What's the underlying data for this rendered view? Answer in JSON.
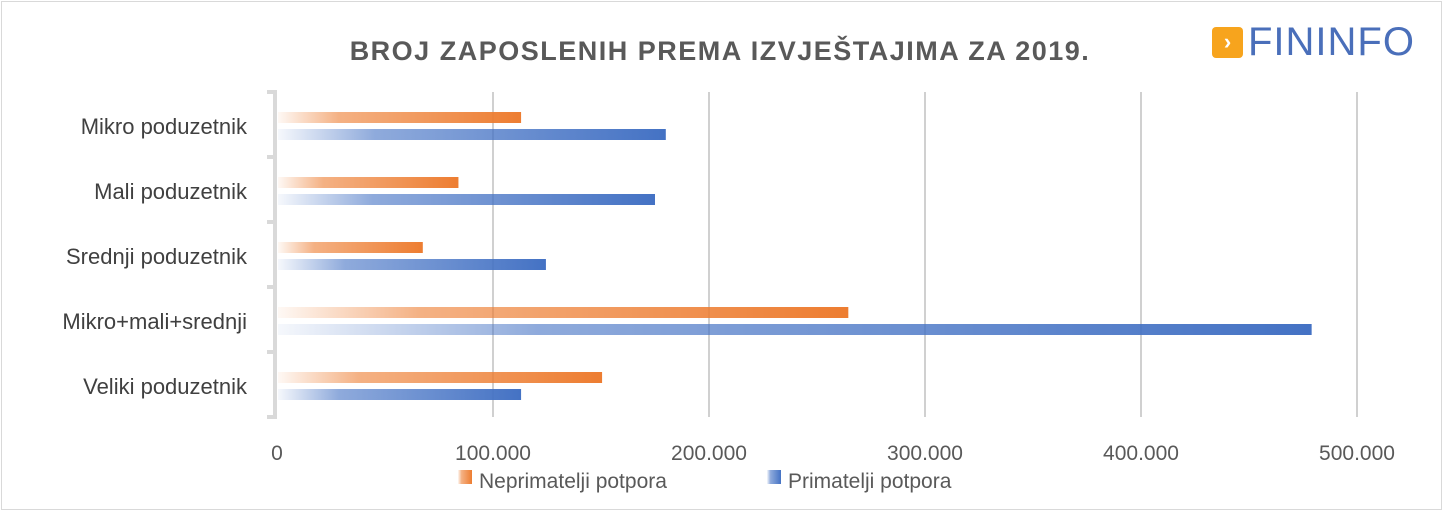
{
  "chart_data": {
    "type": "bar",
    "orientation": "horizontal",
    "title": "BROJ ZAPOSLENIH PREMA IZVJEŠTAJIMA ZA 2019.",
    "categories": [
      "Mikro poduzetnik",
      "Mali poduzetnik",
      "Srednji poduzetnik",
      "Mikro+mali+srednji",
      "Veliki poduzetnik"
    ],
    "series": [
      {
        "name": "Neprimatelji potpora",
        "color": "#ed7d31",
        "values": [
          113000,
          84000,
          67500,
          264500,
          150500
        ]
      },
      {
        "name": "Primatelji potpora",
        "color": "#4472c4",
        "values": [
          180000,
          175000,
          124500,
          479000,
          113000
        ]
      }
    ],
    "xlim": [
      0,
      500000
    ],
    "xticks": [
      0,
      100000,
      200000,
      300000,
      400000,
      500000
    ],
    "xtick_labels": [
      "0",
      "100.000",
      "200.000",
      "300.000",
      "400.000",
      "500.000"
    ],
    "grid": true,
    "legend": "bottom",
    "xlabel": "",
    "ylabel": ""
  },
  "logo": {
    "text": "FININFO",
    "mark": "arrow-icon"
  }
}
